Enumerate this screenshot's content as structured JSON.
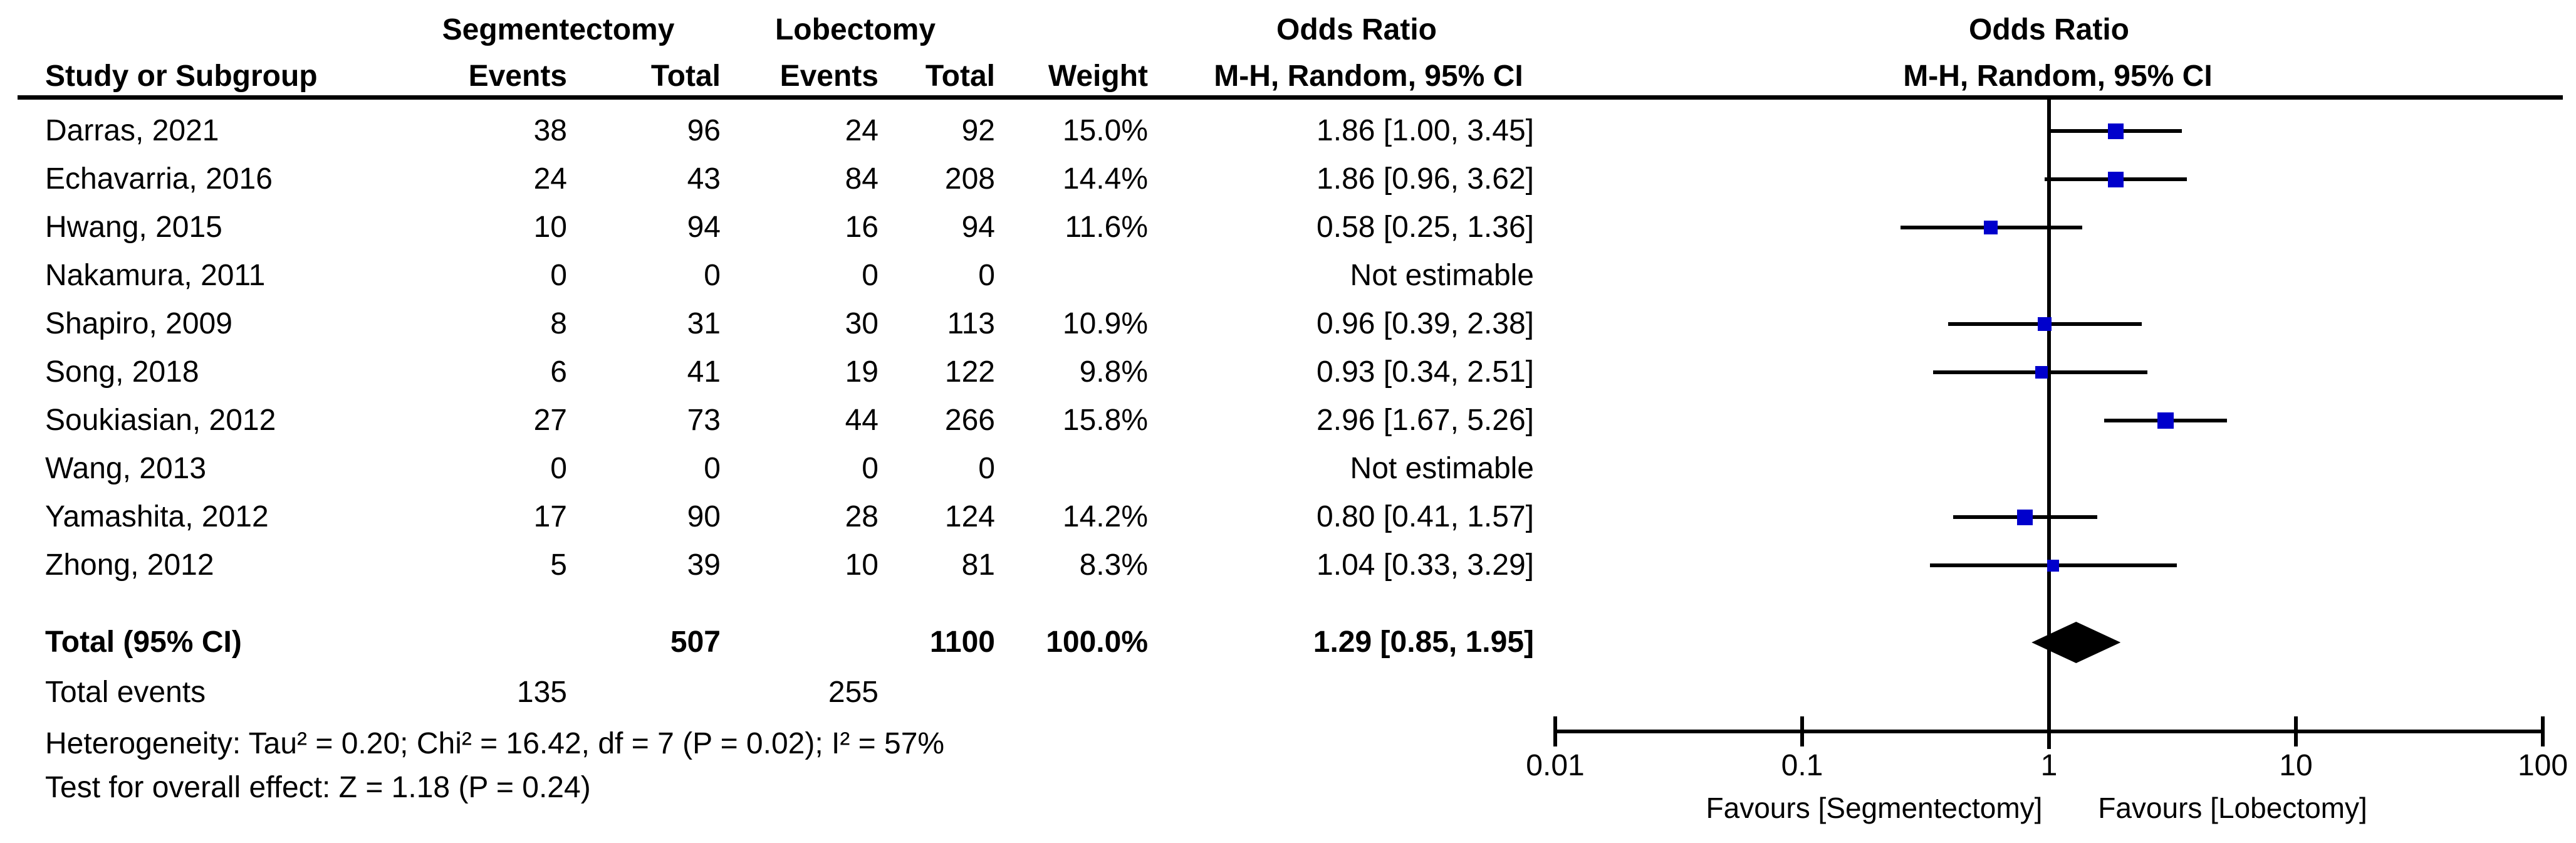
{
  "chart_data": {
    "type": "forest",
    "effect_measure": "Odds Ratio",
    "columns": {
      "study": "Study or Subgroup",
      "group1": "Segmentectomy",
      "group2": "Lobectomy",
      "events": "Events",
      "total": "Total",
      "weight": "Weight",
      "or_header": "Odds Ratio",
      "mh_header": "M-H, Random, 95% CI"
    },
    "studies": [
      {
        "name": "Darras, 2021",
        "seg_events": "38",
        "seg_total": "96",
        "lob_events": "24",
        "lob_total": "92",
        "weight": "15.0%",
        "weight_pct": 15.0,
        "or_ci": "1.86 [1.00, 3.45]",
        "or": 1.86,
        "ci_low": 1.0,
        "ci_high": 3.45,
        "estimable": true
      },
      {
        "name": "Echavarria, 2016",
        "seg_events": "24",
        "seg_total": "43",
        "lob_events": "84",
        "lob_total": "208",
        "weight": "14.4%",
        "weight_pct": 14.4,
        "or_ci": "1.86 [0.96, 3.62]",
        "or": 1.86,
        "ci_low": 0.96,
        "ci_high": 3.62,
        "estimable": true
      },
      {
        "name": "Hwang, 2015",
        "seg_events": "10",
        "seg_total": "94",
        "lob_events": "16",
        "lob_total": "94",
        "weight": "11.6%",
        "weight_pct": 11.6,
        "or_ci": "0.58 [0.25, 1.36]",
        "or": 0.58,
        "ci_low": 0.25,
        "ci_high": 1.36,
        "estimable": true
      },
      {
        "name": "Nakamura, 2011",
        "seg_events": "0",
        "seg_total": "0",
        "lob_events": "0",
        "lob_total": "0",
        "weight": "",
        "weight_pct": 0,
        "or_ci": "Not estimable",
        "or": null,
        "ci_low": null,
        "ci_high": null,
        "estimable": false
      },
      {
        "name": "Shapiro, 2009",
        "seg_events": "8",
        "seg_total": "31",
        "lob_events": "30",
        "lob_total": "113",
        "weight": "10.9%",
        "weight_pct": 10.9,
        "or_ci": "0.96 [0.39, 2.38]",
        "or": 0.96,
        "ci_low": 0.39,
        "ci_high": 2.38,
        "estimable": true
      },
      {
        "name": "Song, 2018",
        "seg_events": "6",
        "seg_total": "41",
        "lob_events": "19",
        "lob_total": "122",
        "weight": "9.8%",
        "weight_pct": 9.8,
        "or_ci": "0.93 [0.34, 2.51]",
        "or": 0.93,
        "ci_low": 0.34,
        "ci_high": 2.51,
        "estimable": true
      },
      {
        "name": "Soukiasian, 2012",
        "seg_events": "27",
        "seg_total": "73",
        "lob_events": "44",
        "lob_total": "266",
        "weight": "15.8%",
        "weight_pct": 15.8,
        "or_ci": "2.96 [1.67, 5.26]",
        "or": 2.96,
        "ci_low": 1.67,
        "ci_high": 5.26,
        "estimable": true
      },
      {
        "name": "Wang, 2013",
        "seg_events": "0",
        "seg_total": "0",
        "lob_events": "0",
        "lob_total": "0",
        "weight": "",
        "weight_pct": 0,
        "or_ci": "Not estimable",
        "or": null,
        "ci_low": null,
        "ci_high": null,
        "estimable": false
      },
      {
        "name": "Yamashita, 2012",
        "seg_events": "17",
        "seg_total": "90",
        "lob_events": "28",
        "lob_total": "124",
        "weight": "14.2%",
        "weight_pct": 14.2,
        "or_ci": "0.80 [0.41, 1.57]",
        "or": 0.8,
        "ci_low": 0.41,
        "ci_high": 1.57,
        "estimable": true
      },
      {
        "name": "Zhong, 2012",
        "seg_events": "5",
        "seg_total": "39",
        "lob_events": "10",
        "lob_total": "81",
        "weight": "8.3%",
        "weight_pct": 8.3,
        "or_ci": "1.04 [0.33, 3.29]",
        "or": 1.04,
        "ci_low": 0.33,
        "ci_high": 3.29,
        "estimable": true
      }
    ],
    "total": {
      "label": "Total (95% CI)",
      "seg_total": "507",
      "lob_total": "1100",
      "weight": "100.0%",
      "or_ci": "1.29 [0.85, 1.95]",
      "or": 1.29,
      "ci_low": 0.85,
      "ci_high": 1.95
    },
    "total_events": {
      "label": "Total events",
      "seg": "135",
      "lob": "255"
    },
    "heterogeneity": "Heterogeneity: Tau² = 0.20; Chi² = 16.42, df = 7 (P = 0.02); I² = 57%",
    "overall_effect": "Test for overall effect: Z = 1.18 (P = 0.24)",
    "axis": {
      "scale": "log10",
      "range": [
        0.01,
        100
      ],
      "ticks": [
        0.01,
        0.1,
        1,
        10,
        100
      ],
      "tick_labels": [
        "0.01",
        "0.1",
        "1",
        "10",
        "100"
      ],
      "favours_left": "Favours [Segmentectomy]",
      "favours_right": "Favours [Lobectomy]"
    },
    "colors": {
      "marker": "#0000cc",
      "diamond": "#000000",
      "line": "#000000"
    }
  }
}
